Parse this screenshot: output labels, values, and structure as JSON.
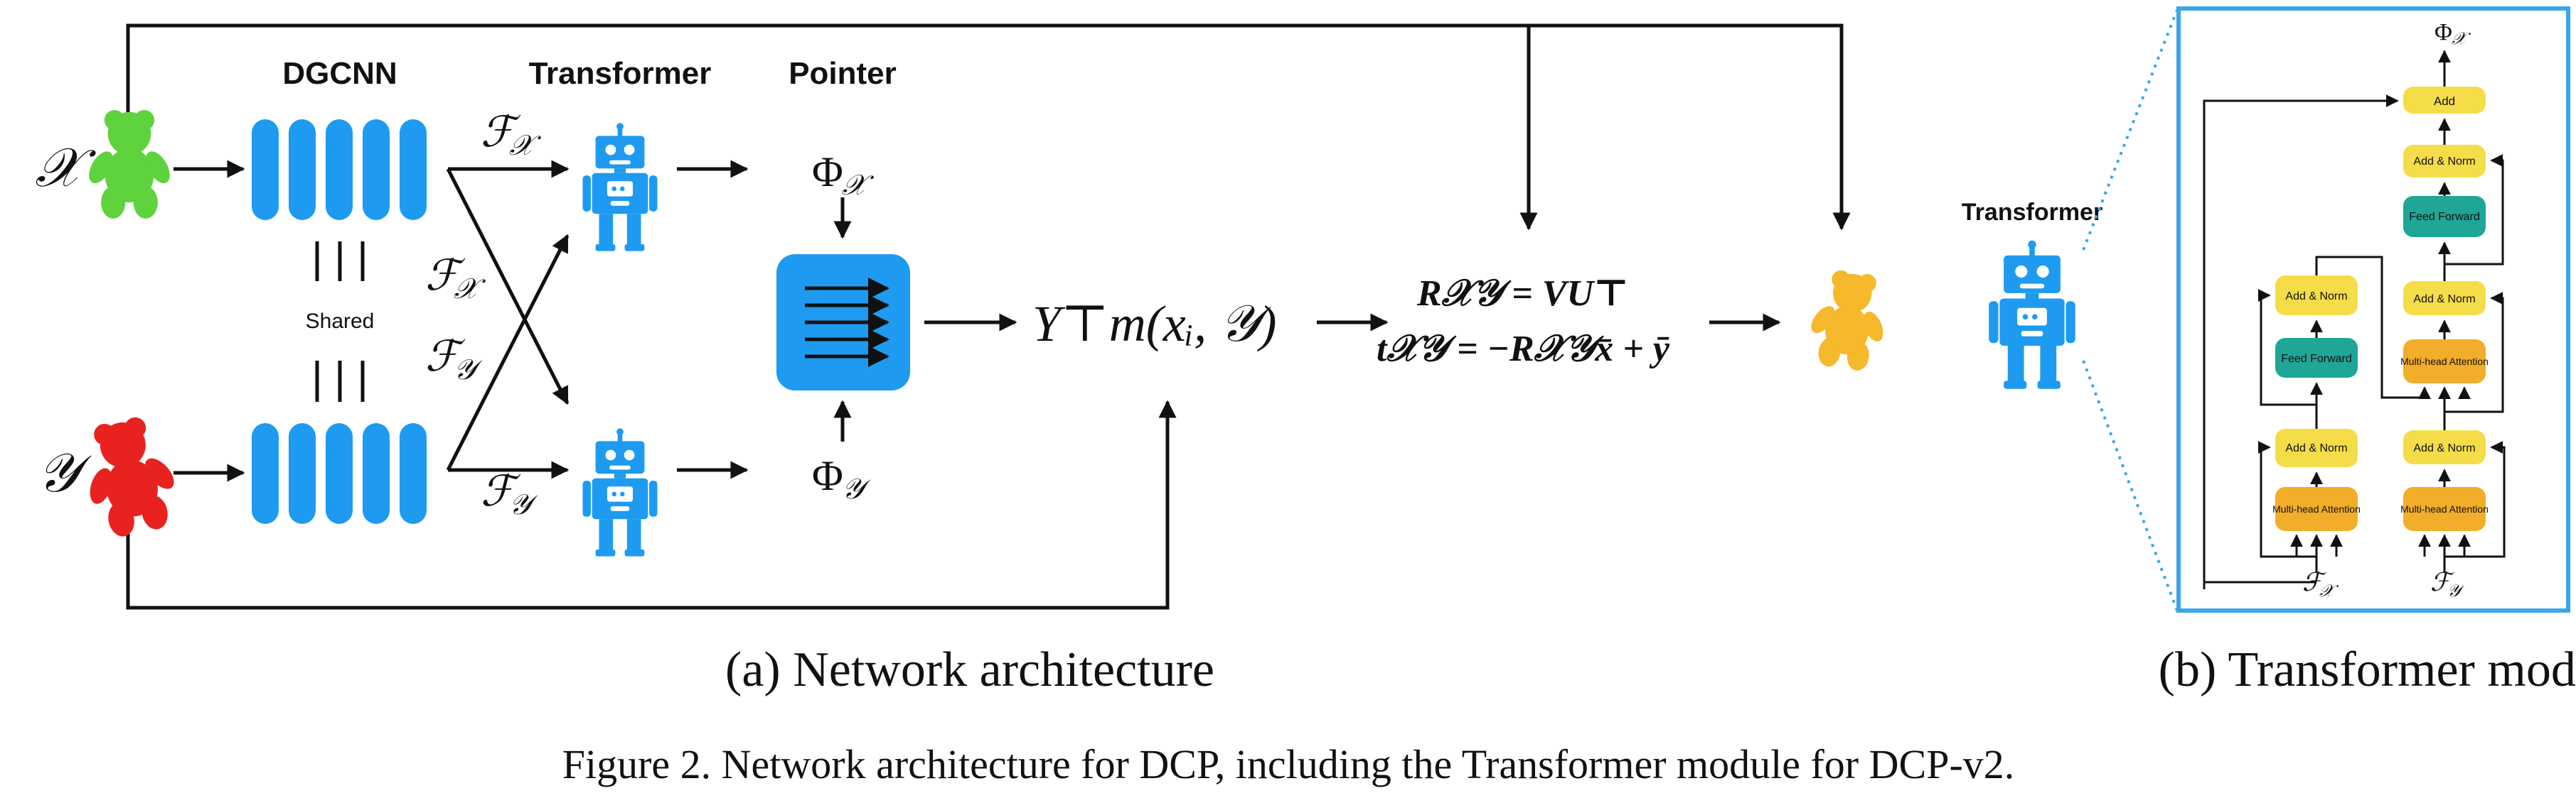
{
  "figure": {
    "caption": "Figure 2. Network architecture for DCP, including the Transformer module for DCP-v2."
  },
  "panel_a": {
    "subcaption": "(a) Network architecture",
    "headers": {
      "dgcnn": "DGCNN",
      "transformer": "Transformer",
      "pointer": "Pointer"
    },
    "shared_label": "Shared",
    "input_x": "𝒳",
    "input_y": "𝒴",
    "feat_x": "ℱ",
    "feat_x_sub": "𝒳",
    "feat_y": "ℱ",
    "feat_y_sub": "𝒴",
    "phi_x": "Φ",
    "phi_x_sub": "𝒳",
    "phi_y": "Φ",
    "phi_y_sub": "𝒴",
    "pointer_output": "Y⊤m(xᵢ, 𝒴)",
    "svd_line1": "R𝒳𝒴 = VU⊤",
    "svd_line2": "t𝒳𝒴 = −R𝒳𝒴x̄ + ȳ",
    "colors": {
      "blue": "#1e9bf0",
      "green": "#5fd33e",
      "red": "#e8231f",
      "yellow": "#f6b92b"
    }
  },
  "panel_b": {
    "subcaption": "(b) Transformer module",
    "robot_label": "Transformer",
    "phi_out": "Φ",
    "phi_out_sub": "𝒳",
    "encoder": {
      "attention": "Multi-head Attention",
      "norm1": "Add & Norm",
      "ffn": "Feed Forward",
      "norm2": "Add & Norm",
      "input": "ℱ",
      "input_sub": "𝒳"
    },
    "decoder": {
      "attention1": "Multi-head Attention",
      "norm1": "Add & Norm",
      "attention2": "Multi-head Attention",
      "norm2": "Add & Norm",
      "ffn": "Feed Forward",
      "norm3": "Add & Norm",
      "input": "ℱ",
      "input_sub": "𝒴"
    },
    "add_label": "Add",
    "colors": {
      "frame": "#3aa6e8",
      "yellow": "#f5dd4a",
      "orange": "#f2ad2a",
      "teal": "#1fa696"
    }
  }
}
